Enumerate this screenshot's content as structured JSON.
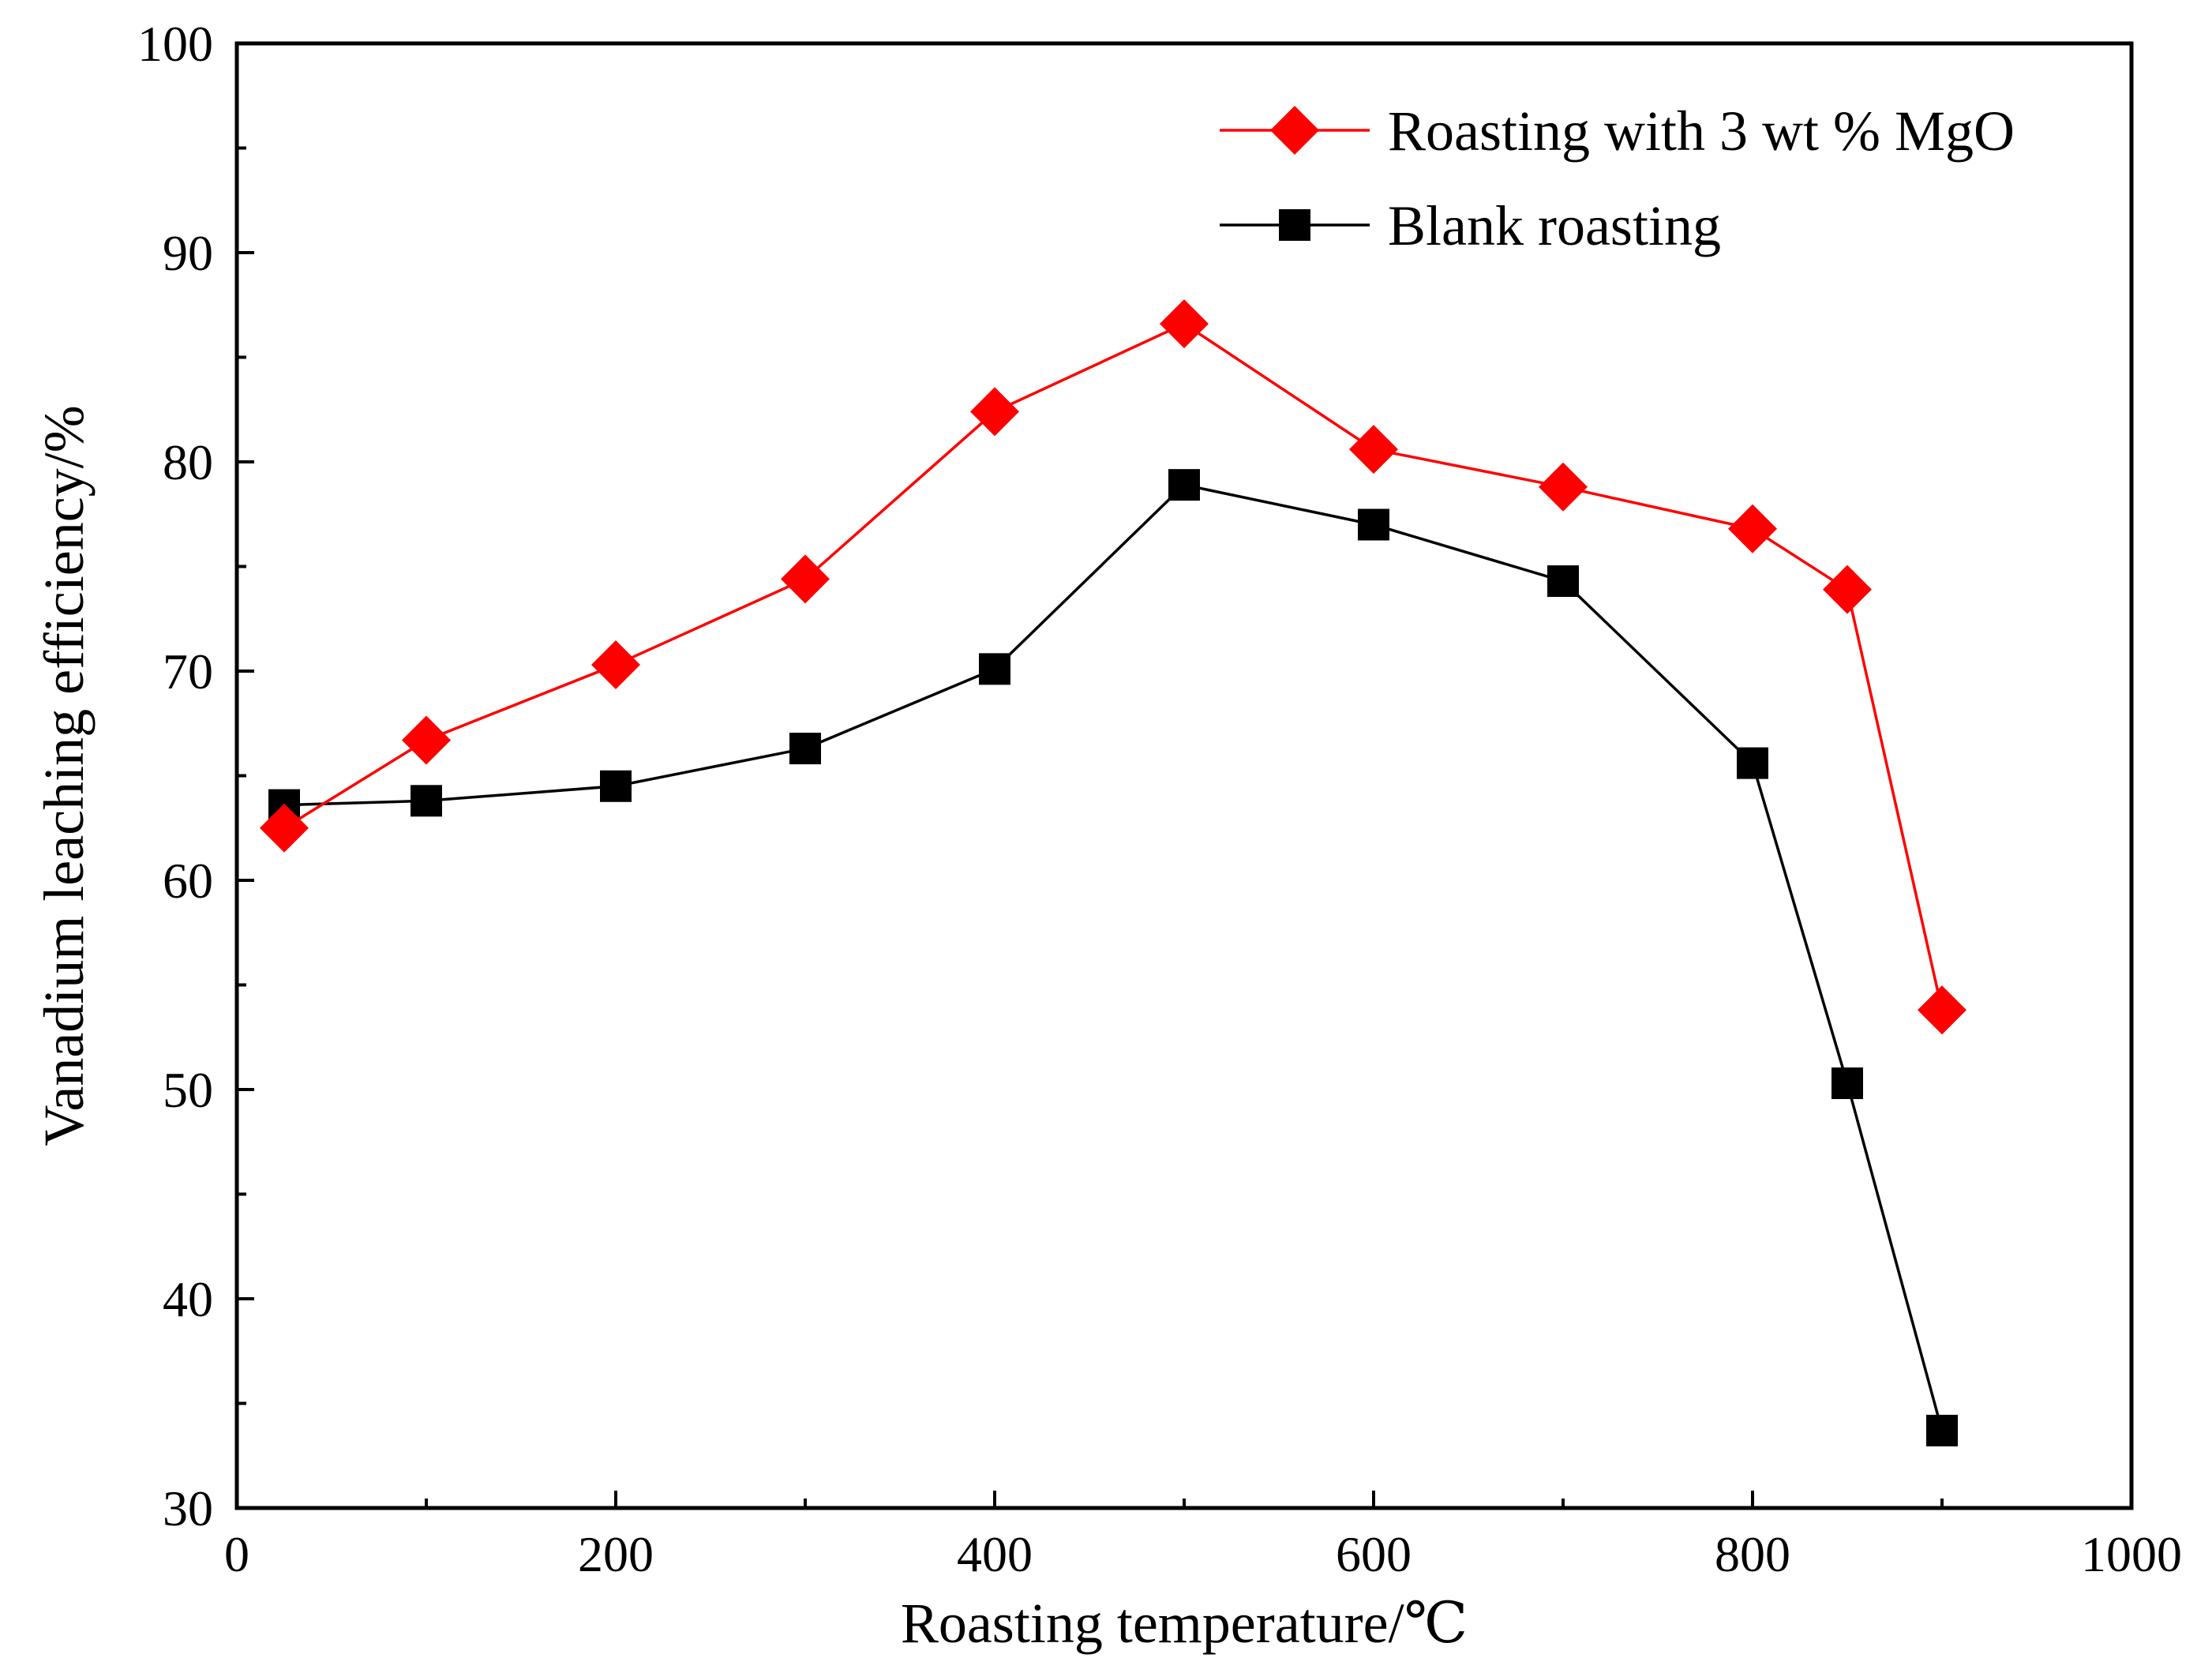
{
  "chart_data": {
    "type": "line",
    "title": "",
    "xlabel": "Roasting temperature/℃",
    "ylabel": "Vanadium leaching efficiency/%",
    "xlim": [
      0,
      1000
    ],
    "ylim": [
      30,
      100
    ],
    "x_major_ticks": [
      0,
      200,
      400,
      600,
      800,
      1000
    ],
    "x_minor_ticks": [
      100,
      300,
      500,
      700,
      900
    ],
    "y_major_ticks": [
      30,
      40,
      50,
      60,
      70,
      80,
      90,
      100
    ],
    "y_minor_ticks": [
      35,
      45,
      55,
      65,
      75,
      85,
      95
    ],
    "grid": false,
    "legend_position": "top-right",
    "series": [
      {
        "name": "Roasting with 3 wt % MgO",
        "color": "#ff0000",
        "marker": "diamond",
        "x": [
          25,
          100,
          200,
          300,
          400,
          500,
          600,
          700,
          800,
          850,
          900
        ],
        "y": [
          62.5,
          66.7,
          70.3,
          74.4,
          82.4,
          86.6,
          80.6,
          78.8,
          76.8,
          73.9,
          53.8
        ]
      },
      {
        "name": "Blank roasting",
        "color": "#000000",
        "marker": "square",
        "x": [
          25,
          100,
          200,
          300,
          400,
          500,
          600,
          700,
          800,
          850,
          900
        ],
        "y": [
          63.6,
          63.8,
          64.5,
          66.3,
          70.1,
          78.9,
          77.0,
          74.3,
          65.6,
          50.3,
          33.7
        ]
      }
    ]
  }
}
